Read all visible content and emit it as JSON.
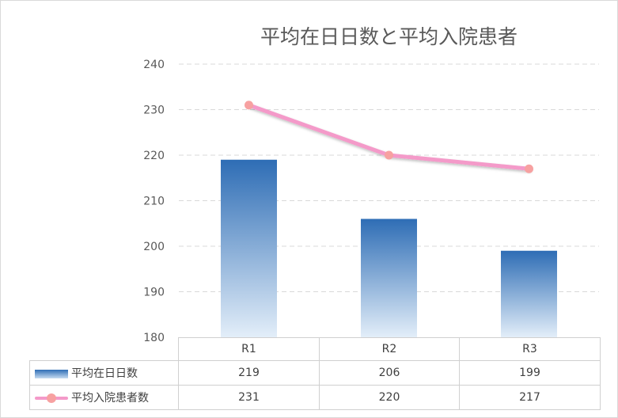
{
  "chart_data": {
    "type": "bar",
    "title": "平均在日日数と平均入院患者",
    "categories": [
      "R1",
      "R2",
      "R3"
    ],
    "series": [
      {
        "name": "平均在日日数",
        "type": "bar",
        "values": [
          219,
          206,
          199
        ]
      },
      {
        "name": "平均入院患者数",
        "type": "line",
        "values": [
          231,
          220,
          217
        ]
      }
    ],
    "ylim": [
      180,
      240
    ],
    "yticks": [
      180,
      190,
      200,
      210,
      220,
      230,
      240
    ],
    "grid": true,
    "data_table": true,
    "colors": {
      "bar_top": "#2e6db5",
      "bar_bottom": "#e3eef9",
      "line": "#f49ac9",
      "marker": "#f7a1a1",
      "grid": "#d9d9d9",
      "text": "#595959"
    }
  }
}
